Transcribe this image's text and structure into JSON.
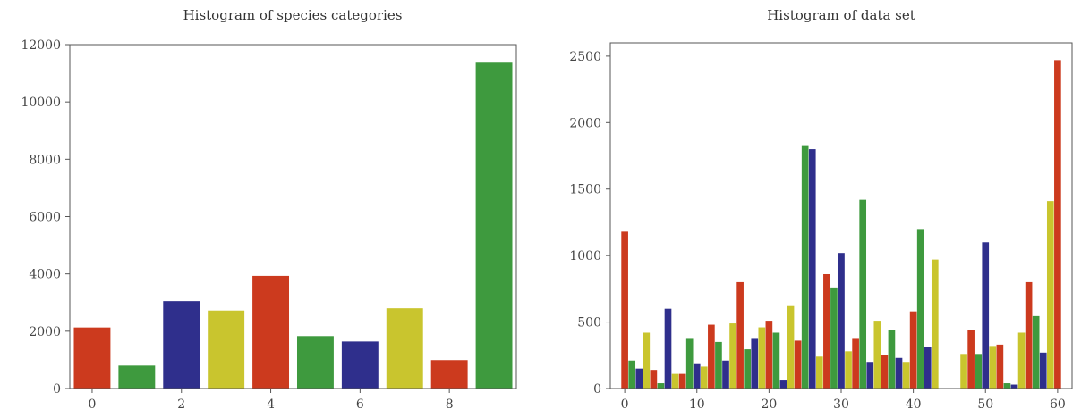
{
  "colors": {
    "red": "#cc3a1e",
    "green": "#3e9a3e",
    "navy": "#2f2f8c",
    "yellow": "#c9c52e",
    "axis": "#555555",
    "text": "#333333"
  },
  "chart_data": [
    {
      "type": "bar",
      "title": "Histogram of species categories",
      "xlabel": "",
      "ylabel": "",
      "x": [
        0,
        1,
        2,
        3,
        4,
        5,
        6,
        7,
        8,
        9
      ],
      "values": [
        2130,
        800,
        3050,
        2720,
        3930,
        1830,
        1640,
        2800,
        990,
        11400
      ],
      "bar_colors": [
        "red",
        "green",
        "navy",
        "yellow",
        "red",
        "green",
        "navy",
        "yellow",
        "red",
        "green"
      ],
      "xlim": [
        -0.5,
        9.5
      ],
      "ylim": [
        0,
        12000
      ],
      "xticks": [
        0,
        2,
        4,
        6,
        8
      ],
      "xtick_labels": [
        "0",
        "2",
        "4",
        "6",
        "8"
      ],
      "yticks": [
        0,
        2000,
        4000,
        6000,
        8000,
        10000,
        12000
      ],
      "ytick_labels": [
        "0",
        "2000",
        "4000",
        "6000",
        "8000",
        "10000",
        "12000"
      ],
      "grid": false,
      "legend": null
    },
    {
      "type": "bar",
      "title": "Histogram of data set",
      "xlabel": "",
      "ylabel": "",
      "x": [
        0,
        1,
        2,
        3,
        4,
        5,
        6,
        7,
        8,
        9,
        10,
        11,
        12,
        13,
        14,
        15,
        16,
        17,
        18,
        19,
        20,
        21,
        22,
        23,
        24,
        25,
        26,
        27,
        28,
        29,
        30,
        31,
        32,
        33,
        34,
        35,
        36,
        37,
        38,
        39,
        40,
        41,
        42,
        43,
        44,
        45,
        46,
        47,
        48,
        49,
        50,
        51,
        52,
        53,
        54,
        55,
        56,
        57,
        58,
        59,
        60
      ],
      "values": [
        1180,
        210,
        150,
        420,
        140,
        40,
        600,
        110,
        110,
        380,
        190,
        165,
        480,
        350,
        210,
        490,
        800,
        295,
        380,
        460,
        510,
        420,
        60,
        620,
        360,
        1830,
        1800,
        240,
        860,
        760,
        1020,
        280,
        380,
        1420,
        200,
        510,
        250,
        440,
        230,
        200,
        580,
        1200,
        310,
        970,
        0,
        0,
        0,
        260,
        440,
        260,
        1100,
        320,
        330,
        40,
        30,
        420,
        800,
        545,
        270,
        1410,
        2470
      ],
      "bar_colors": [
        "red",
        "green",
        "navy",
        "yellow",
        "red",
        "green",
        "navy",
        "yellow",
        "red",
        "green",
        "navy",
        "yellow",
        "red",
        "green",
        "navy",
        "yellow",
        "red",
        "green",
        "navy",
        "yellow",
        "red",
        "green",
        "navy",
        "yellow",
        "red",
        "green",
        "navy",
        "yellow",
        "red",
        "green",
        "navy",
        "yellow",
        "red",
        "green",
        "navy",
        "yellow",
        "red",
        "green",
        "navy",
        "yellow",
        "red",
        "green",
        "navy",
        "yellow",
        "red",
        "green",
        "navy",
        "yellow",
        "red",
        "green",
        "navy",
        "yellow",
        "red",
        "green",
        "navy",
        "yellow",
        "red",
        "green",
        "navy",
        "yellow",
        "red"
      ],
      "xlim": [
        -2,
        62
      ],
      "ylim": [
        0,
        2600
      ],
      "xticks": [
        0,
        10,
        20,
        30,
        40,
        50,
        60
      ],
      "xtick_labels": [
        "0",
        "10",
        "20",
        "30",
        "40",
        "50",
        "60"
      ],
      "yticks": [
        0,
        500,
        1000,
        1500,
        2000,
        2500
      ],
      "ytick_labels": [
        "0",
        "500",
        "1000",
        "1500",
        "2000",
        "2500"
      ],
      "grid": false,
      "legend": null
    }
  ]
}
